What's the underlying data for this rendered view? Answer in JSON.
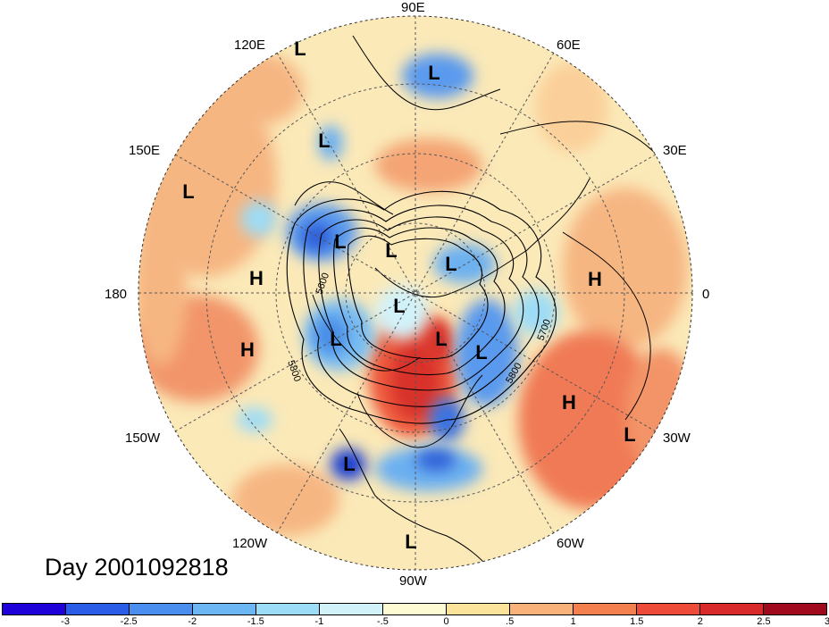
{
  "map": {
    "lon_labels": [
      "90E",
      "60E",
      "30E",
      "0",
      "30W",
      "60W",
      "90W",
      "120W",
      "150W",
      "180",
      "150E",
      "120E"
    ],
    "systems": [
      {
        "id": "L1",
        "type": "L"
      },
      {
        "id": "L2",
        "type": "L"
      },
      {
        "id": "L3",
        "type": "L"
      },
      {
        "id": "L4",
        "type": "L"
      },
      {
        "id": "L5",
        "type": "L"
      },
      {
        "id": "L6",
        "type": "L"
      },
      {
        "id": "L7",
        "type": "L"
      },
      {
        "id": "L8",
        "type": "L"
      },
      {
        "id": "L9",
        "type": "L"
      },
      {
        "id": "L10",
        "type": "L"
      },
      {
        "id": "L11",
        "type": "L"
      },
      {
        "id": "L12",
        "type": "L"
      },
      {
        "id": "L13",
        "type": "L"
      },
      {
        "id": "L14",
        "type": "L"
      },
      {
        "id": "H1",
        "type": "H"
      },
      {
        "id": "H2",
        "type": "H"
      },
      {
        "id": "H3",
        "type": "H"
      },
      {
        "id": "H4",
        "type": "H"
      }
    ],
    "contour_labels": [
      "5600",
      "5700",
      "5800",
      "5800"
    ],
    "day_label": "Day 2001092818"
  },
  "colorbar": {
    "colors": [
      "#1e00d8",
      "#2a5ce8",
      "#4a8ef0",
      "#6cb6f4",
      "#9ddcf6",
      "#d2f2fa",
      "#fdfbd2",
      "#fce39c",
      "#f9b27a",
      "#f47f4f",
      "#ee4a3a",
      "#d82a2a",
      "#a00a1c"
    ],
    "ticks": [
      "-3",
      "-2.5",
      "-2",
      "-1.5",
      "-1",
      "-.5",
      "0",
      ".5",
      "1",
      "1.5",
      "2",
      "2.5",
      "3"
    ]
  }
}
